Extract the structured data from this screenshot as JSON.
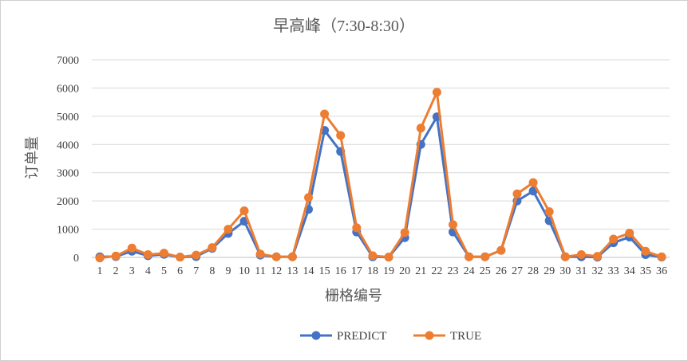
{
  "chart_data": {
    "type": "line",
    "title": "早高峰（7:30-8:30）",
    "xlabel": "栅格编号",
    "ylabel": "订单量",
    "ylim": [
      0,
      7000
    ],
    "y_ticks": [
      "0",
      "1000",
      "2000",
      "3000",
      "4000",
      "5000",
      "6000",
      "7000"
    ],
    "categories": [
      "1",
      "2",
      "3",
      "4",
      "5",
      "6",
      "7",
      "8",
      "9",
      "10",
      "11",
      "12",
      "13",
      "14",
      "15",
      "16",
      "17",
      "18",
      "19",
      "20",
      "21",
      "22",
      "23",
      "24",
      "25",
      "26",
      "27",
      "28",
      "29",
      "30",
      "31",
      "32",
      "33",
      "34",
      "35",
      "36"
    ],
    "grid": true,
    "legend_position": "bottom",
    "series": [
      {
        "name": "PREDICT",
        "color": "#4472c4",
        "values": [
          20,
          30,
          220,
          60,
          110,
          10,
          30,
          320,
          850,
          1280,
          80,
          20,
          20,
          1700,
          4500,
          3750,
          900,
          20,
          10,
          700,
          4000,
          4980,
          900,
          20,
          20,
          250,
          2000,
          2350,
          1300,
          20,
          20,
          10,
          520,
          720,
          100,
          10
        ]
      },
      {
        "name": "TRUE",
        "color": "#ed7d31",
        "values": [
          -20,
          50,
          330,
          100,
          150,
          10,
          80,
          350,
          1000,
          1650,
          120,
          20,
          20,
          2120,
          5080,
          4320,
          1050,
          60,
          10,
          880,
          4580,
          5850,
          1160,
          20,
          20,
          250,
          2250,
          2650,
          1620,
          20,
          100,
          40,
          650,
          860,
          220,
          20
        ]
      }
    ]
  }
}
